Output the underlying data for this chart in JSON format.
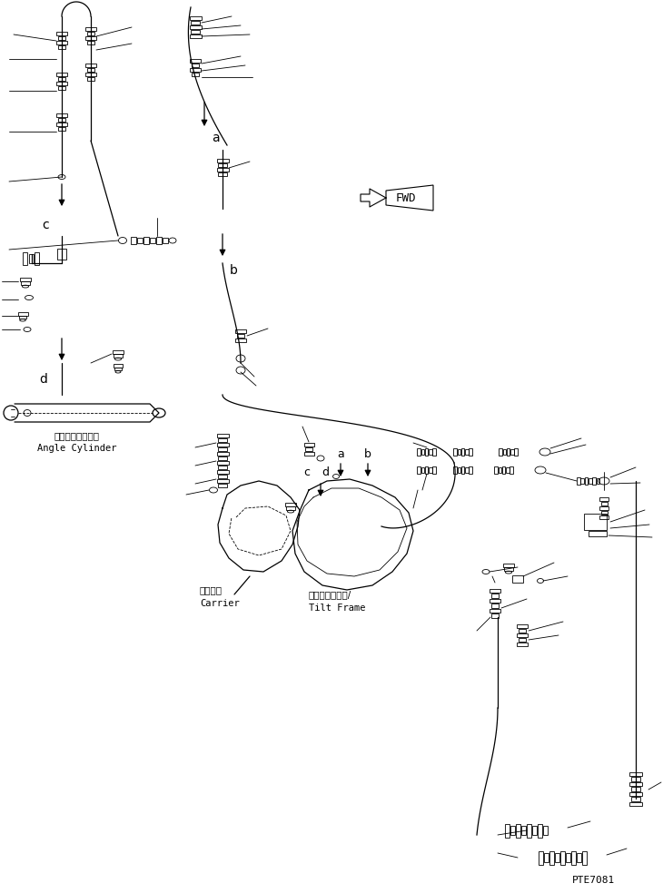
{
  "bg_color": "#ffffff",
  "line_color": "#000000",
  "fig_width": 7.3,
  "fig_height": 9.84,
  "dpi": 100,
  "part_number": "PTE7081",
  "fwd_label": "FWD",
  "angle_cyl_jp": "アングルシリンダ",
  "angle_cyl_en": "Angle Cylinder",
  "carrier_jp": "キャリア",
  "carrier_en": "Carrier",
  "tilt_frame_jp": "チルトフレーム/",
  "tilt_frame_en": "Tilt Frame",
  "label_a": "a",
  "label_b": "b",
  "label_c": "c",
  "label_d": "d"
}
